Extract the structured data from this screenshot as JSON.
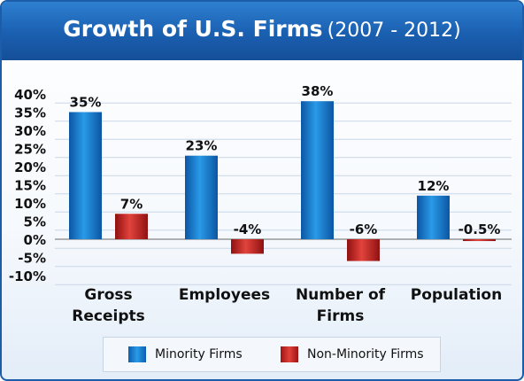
{
  "title": {
    "main": "Growth of U.S. Firms",
    "range": "(2007 - 2012)"
  },
  "colors": {
    "minority": "#1583d9",
    "non_minority": "#d42a26",
    "header": "#1a5fb0"
  },
  "chart_data": {
    "type": "bar",
    "title": "Growth of U.S. Firms (2007 - 2012)",
    "categories": [
      "Gross\nReceipts",
      "Employees",
      "Number of\nFirms",
      "Population"
    ],
    "series": [
      {
        "name": "Minority Firms",
        "values": [
          35,
          23,
          38,
          12
        ],
        "labels": [
          "35%",
          "23%",
          "38%",
          "12%"
        ]
      },
      {
        "name": "Non-Minority Firms",
        "values": [
          7,
          -4,
          -6,
          -0.5
        ],
        "labels": [
          "7%",
          "-4%",
          "-6%",
          "-0.5%"
        ]
      }
    ],
    "ylim": [
      -10,
      40
    ],
    "yticks": [
      40,
      35,
      30,
      25,
      20,
      15,
      10,
      5,
      0,
      -5,
      -10
    ],
    "ytick_labels": [
      "40%",
      "35%",
      "30%",
      "25%",
      "20%",
      "15%",
      "10%",
      "5%",
      "0%",
      "-5%",
      "-10%"
    ],
    "grid": true,
    "legend_position": "bottom"
  }
}
